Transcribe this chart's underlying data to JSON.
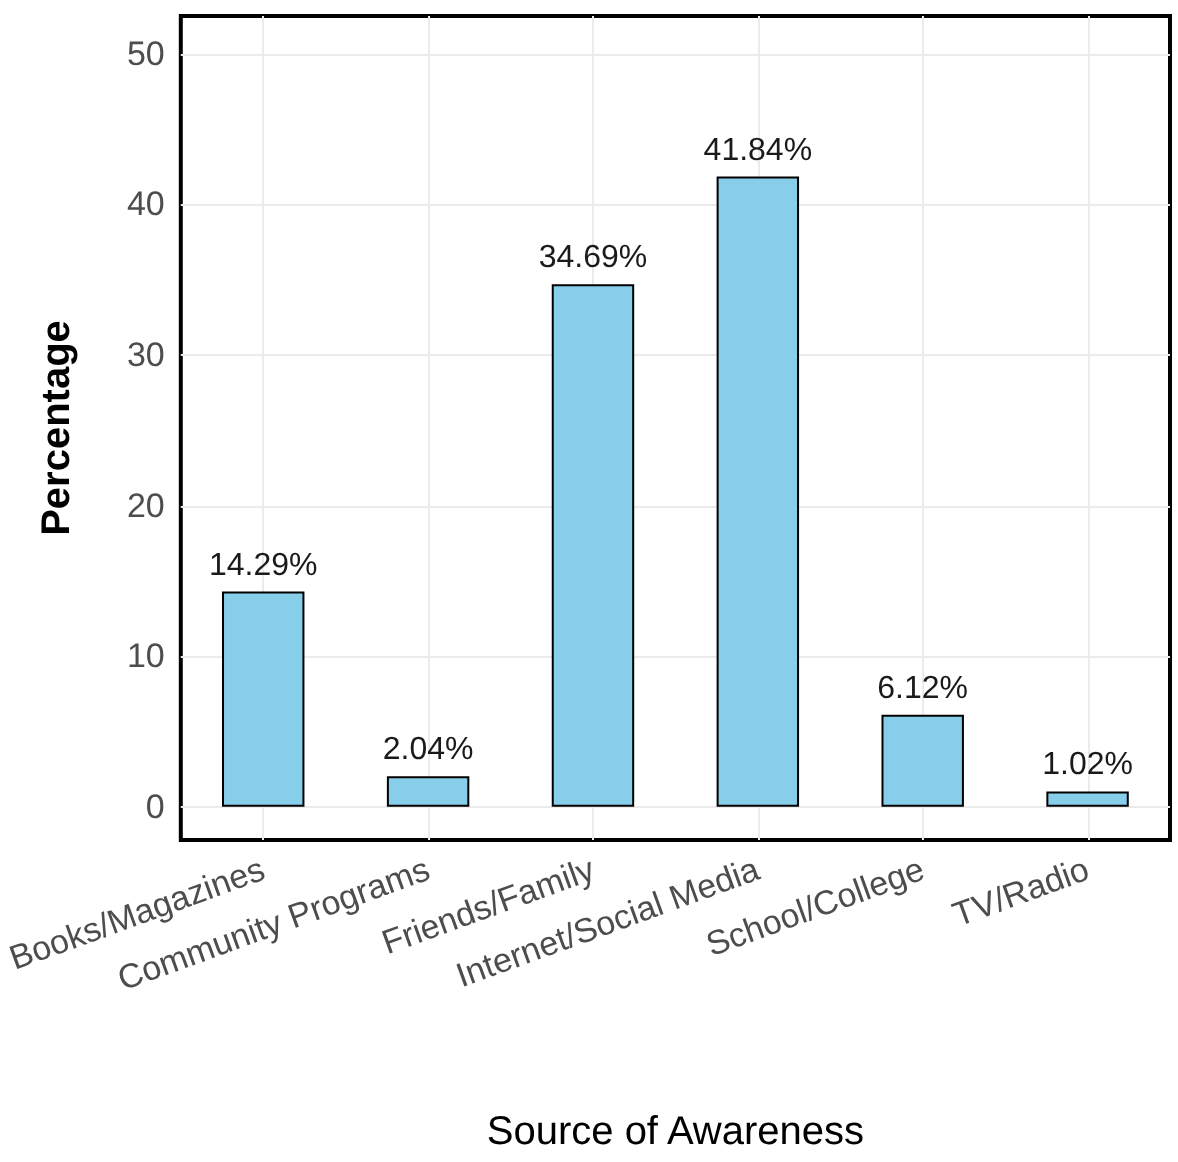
{
  "chart_data": {
    "type": "bar",
    "xlabel": "Source of Awareness",
    "ylabel": "Percentage",
    "categories": [
      "Books/Magazines",
      "Community Programs",
      "Friends/Family",
      "Internet/Social Media",
      "School/College",
      "TV/Radio"
    ],
    "values": [
      14.29,
      2.04,
      34.69,
      41.84,
      6.12,
      1.02
    ],
    "value_labels": [
      "14.29%",
      "2.04%",
      "34.69%",
      "41.84%",
      "6.12%",
      "1.02%"
    ],
    "color": "#87ceeb",
    "ylim": [
      -2.2,
      52.5
    ],
    "yticks": [
      0,
      10,
      20,
      30,
      40,
      50
    ],
    "grid": true
  }
}
